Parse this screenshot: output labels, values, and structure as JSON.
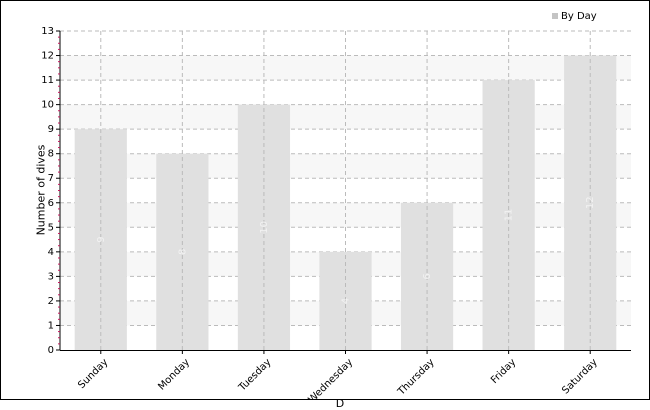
{
  "chart_data": {
    "type": "bar",
    "categories": [
      "Sunday",
      "Monday",
      "Tuesday",
      "Wednesday",
      "Thursday",
      "Friday",
      "Saturday"
    ],
    "series": [
      {
        "name": "By Day",
        "values": [
          9,
          8,
          10,
          4,
          6,
          11,
          12
        ]
      }
    ],
    "data_labels": [
      "9",
      "8",
      "10",
      "4",
      "6",
      "11",
      "12"
    ],
    "ylabel": "Number of dives",
    "xlabel": "D",
    "ylim": [
      0,
      13
    ],
    "yticks": [
      0,
      1,
      2,
      3,
      4,
      5,
      6,
      7,
      8,
      9,
      10,
      11,
      12,
      13
    ],
    "grid": true,
    "legend_position": "top-right",
    "colors": {
      "bar": "#e0e0e0",
      "band": "#f7f7f7",
      "grid": "#bbbbbb",
      "axis": "#000000",
      "data_label": "#f2f2f2",
      "legend_swatch": "#c4c4c4",
      "minor_tick": "#c2185b"
    }
  }
}
